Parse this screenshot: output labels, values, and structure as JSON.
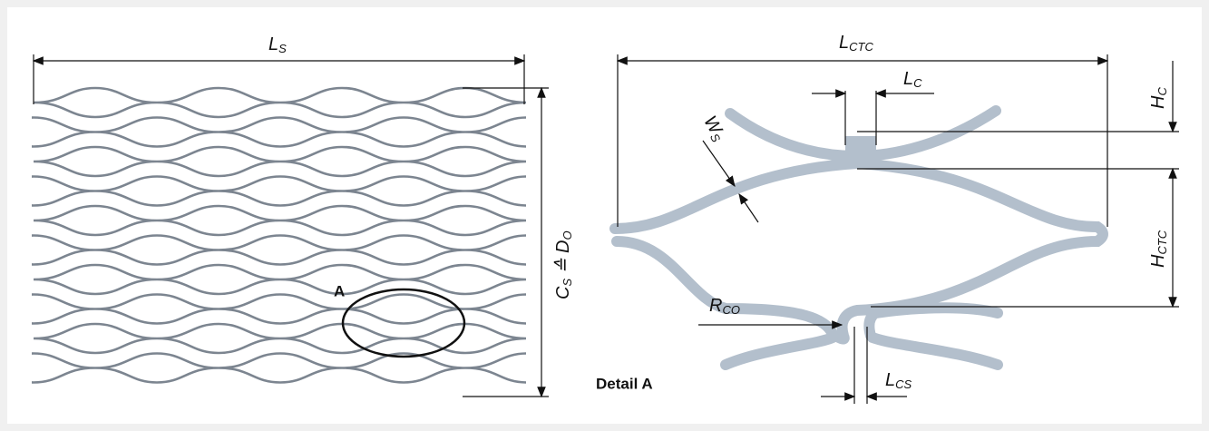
{
  "left": {
    "ls": {
      "main": "L",
      "sub": "S"
    },
    "cs": {
      "main": "C",
      "sub": "S",
      "rel": " ≙ D",
      "sub2": "O"
    },
    "detail_marker": "A"
  },
  "right": {
    "lctc": {
      "main": "L",
      "sub": "CTC"
    },
    "lc": {
      "main": "L",
      "sub": "C"
    },
    "hc": {
      "main": "H",
      "sub": "C"
    },
    "ws": {
      "main": "W",
      "sub": "S"
    },
    "hctc": {
      "main": "H",
      "sub": "CTC"
    },
    "rco": {
      "main": "R",
      "sub": "CO"
    },
    "lcs": {
      "main": "L",
      "sub": "CS"
    },
    "caption": "Detail A"
  }
}
